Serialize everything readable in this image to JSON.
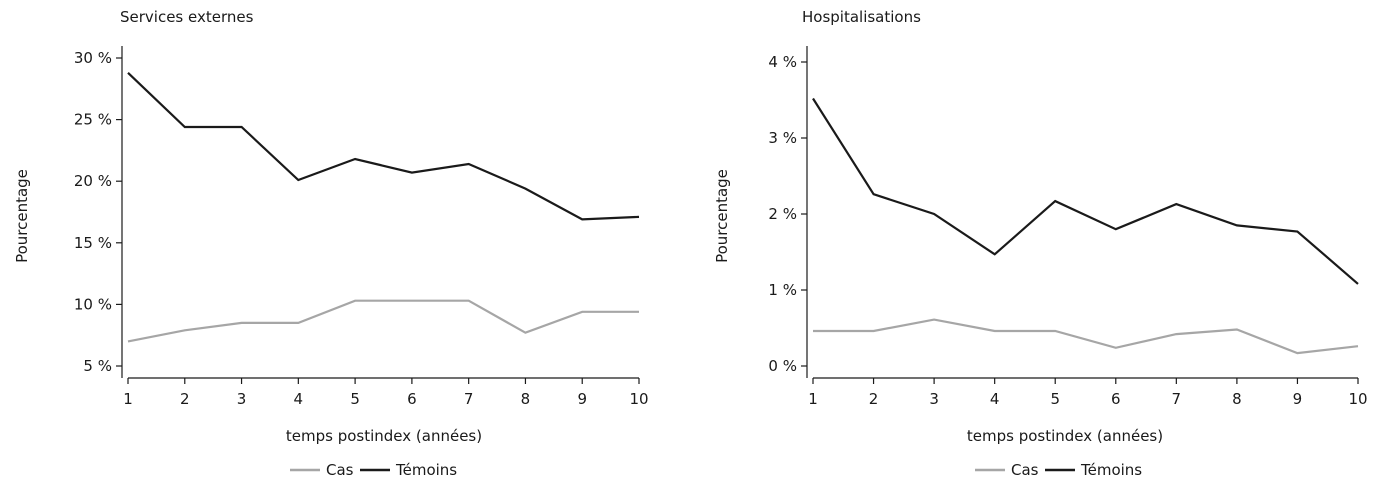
{
  "chart_data": [
    {
      "type": "line",
      "title": "Services externes",
      "xlabel": "temps postindex (années)",
      "ylabel": "Pourcentage",
      "x": [
        1,
        2,
        3,
        4,
        5,
        6,
        7,
        8,
        9,
        10
      ],
      "xticks": [
        "1",
        "2",
        "3",
        "4",
        "5",
        "6",
        "7",
        "8",
        "9",
        "10"
      ],
      "ylim": [
        5,
        30
      ],
      "yticks": [
        5,
        10,
        15,
        20,
        25,
        30
      ],
      "yticklabels": [
        "5 %",
        "10 %",
        "15 %",
        "20 %",
        "25 %",
        "30 %"
      ],
      "grid": false,
      "legend_position": "bottom-center",
      "series": [
        {
          "name": "Cas",
          "color": "#a6a6a6",
          "values": [
            7.0,
            7.9,
            8.5,
            8.5,
            10.3,
            10.3,
            10.3,
            7.7,
            9.4,
            9.4
          ]
        },
        {
          "name": "Témoins",
          "color": "#1a1a1a",
          "values": [
            28.8,
            24.4,
            24.4,
            20.1,
            21.8,
            20.7,
            21.4,
            19.4,
            16.9,
            17.1
          ]
        }
      ]
    },
    {
      "type": "line",
      "title": "Hospitalisations",
      "xlabel": "temps postindex (années)",
      "ylabel": "Pourcentage",
      "x": [
        1,
        2,
        3,
        4,
        5,
        6,
        7,
        8,
        9,
        10
      ],
      "xticks": [
        "1",
        "2",
        "3",
        "4",
        "5",
        "6",
        "7",
        "8",
        "9",
        "10"
      ],
      "ylim": [
        0,
        4
      ],
      "yticks": [
        0,
        1,
        2,
        3,
        4
      ],
      "yticklabels": [
        "0 %",
        "1 %",
        "2 %",
        "3 %",
        "4 %"
      ],
      "grid": false,
      "legend_position": "bottom-center",
      "series": [
        {
          "name": "Cas",
          "color": "#a6a6a6",
          "values": [
            0.46,
            0.46,
            0.61,
            0.46,
            0.46,
            0.24,
            0.42,
            0.48,
            0.17,
            0.26
          ]
        },
        {
          "name": "Témoins",
          "color": "#1a1a1a",
          "values": [
            3.52,
            2.26,
            2.0,
            1.47,
            2.17,
            1.8,
            2.13,
            1.85,
            1.77,
            1.08
          ]
        }
      ]
    }
  ]
}
